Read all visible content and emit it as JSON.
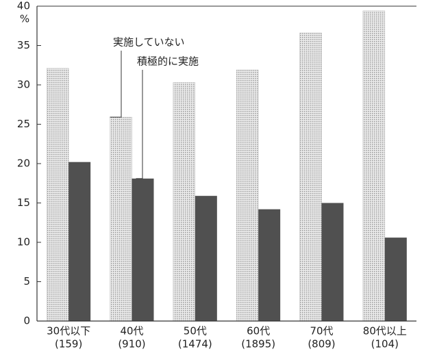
{
  "chart_data": {
    "type": "bar",
    "y_unit": "%",
    "categories": [
      "30代以下",
      "40代",
      "50代",
      "60代",
      "70代",
      "80代以上"
    ],
    "sample_sizes": [
      "(159)",
      "(910)",
      "(1474)",
      "(1895)",
      "(809)",
      "(104)"
    ],
    "series": [
      {
        "name": "実施していない",
        "color": "#d2d2d2",
        "values": [
          32.1,
          25.9,
          30.3,
          31.9,
          36.6,
          39.4
        ]
      },
      {
        "name": "積極的に実施",
        "color": "#505050",
        "values": [
          20.2,
          18.1,
          15.9,
          14.2,
          15.0,
          10.6
        ]
      }
    ],
    "ylim": [
      0,
      40
    ],
    "yticks": [
      0,
      5,
      10,
      15,
      20,
      25,
      30,
      35,
      40
    ],
    "grid": false
  }
}
